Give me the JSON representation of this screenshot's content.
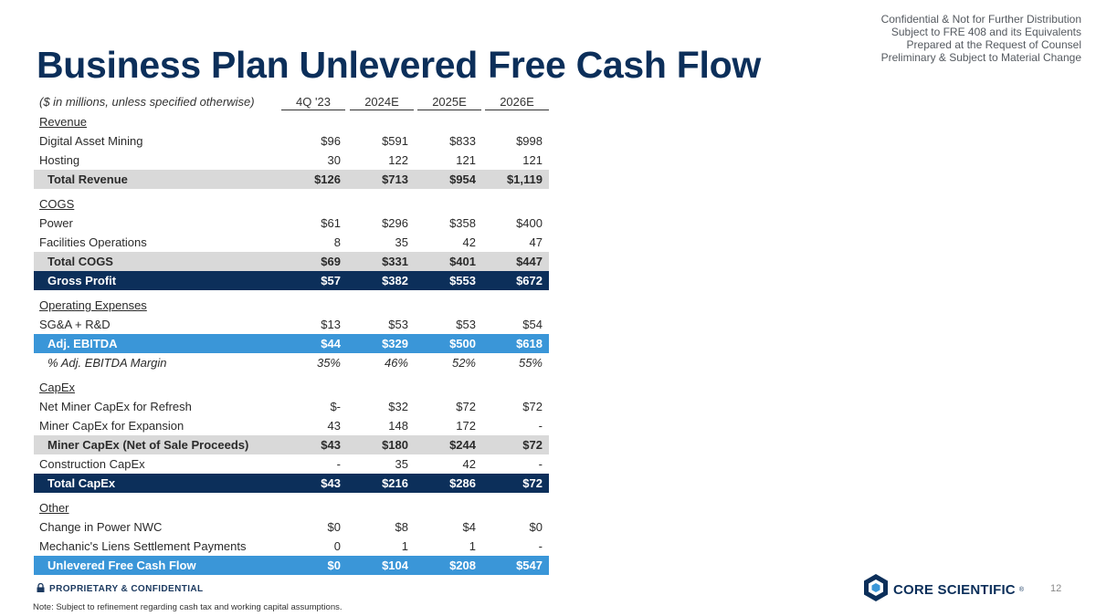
{
  "confidential_lines": [
    "Confidential & Not for Further Distribution",
    "Subject to FRE 408 and its Equivalents",
    "Prepared at the Request of Counsel",
    "Preliminary & Subject to Material Change"
  ],
  "title": "Business Plan Unlevered Free Cash Flow",
  "units_note": "($ in millions, unless specified otherwise)",
  "columns": [
    "4Q '23",
    "2024E",
    "2025E",
    "2026E"
  ],
  "rows": [
    {
      "label": "Revenue",
      "style": "section",
      "values": [
        "",
        "",
        "",
        ""
      ]
    },
    {
      "label": "Digital Asset Mining",
      "style": "plain",
      "values": [
        "$96",
        "$591",
        "$833",
        "$998"
      ]
    },
    {
      "label": "Hosting",
      "style": "plain",
      "values": [
        "30",
        "122",
        "121",
        "121"
      ]
    },
    {
      "label": "Total Revenue",
      "style": "gray",
      "values": [
        "$126",
        "$713",
        "$954",
        "$1,119"
      ]
    },
    {
      "label": "COGS",
      "style": "section",
      "values": [
        "",
        "",
        "",
        ""
      ]
    },
    {
      "label": "Power",
      "style": "plain",
      "values": [
        "$61",
        "$296",
        "$358",
        "$400"
      ]
    },
    {
      "label": "Facilities Operations",
      "style": "plain",
      "values": [
        "8",
        "35",
        "42",
        "47"
      ]
    },
    {
      "label": "Total COGS",
      "style": "gray",
      "values": [
        "$69",
        "$331",
        "$401",
        "$447"
      ]
    },
    {
      "label": "Gross Profit",
      "style": "navy",
      "values": [
        "$57",
        "$382",
        "$553",
        "$672"
      ]
    },
    {
      "label": "Operating Expenses",
      "style": "section",
      "values": [
        "",
        "",
        "",
        ""
      ]
    },
    {
      "label": "SG&A + R&D",
      "style": "plain",
      "values": [
        "$13",
        "$53",
        "$53",
        "$54"
      ]
    },
    {
      "label": "Adj. EBITDA",
      "style": "blue",
      "values": [
        "$44",
        "$329",
        "$500",
        "$618"
      ]
    },
    {
      "label": "% Adj. EBITDA Margin",
      "style": "italic",
      "values": [
        "35%",
        "46%",
        "52%",
        "55%"
      ]
    },
    {
      "label": "CapEx",
      "style": "section",
      "values": [
        "",
        "",
        "",
        ""
      ]
    },
    {
      "label": "Net Miner CapEx for Refresh",
      "style": "plain",
      "values": [
        "$-",
        "$32",
        "$72",
        "$72"
      ]
    },
    {
      "label": "Miner CapEx for Expansion",
      "style": "plain",
      "values": [
        "43",
        "148",
        "172",
        "-"
      ]
    },
    {
      "label": "Miner CapEx (Net of Sale Proceeds)",
      "style": "gray",
      "values": [
        "$43",
        "$180",
        "$244",
        "$72"
      ]
    },
    {
      "label": "Construction CapEx",
      "style": "plain",
      "values": [
        "-",
        "35",
        "42",
        "-"
      ]
    },
    {
      "label": "Total CapEx",
      "style": "navy",
      "values": [
        "$43",
        "$216",
        "$286",
        "$72"
      ]
    },
    {
      "label": "Other",
      "style": "section",
      "values": [
        "",
        "",
        "",
        ""
      ]
    },
    {
      "label": "Change in Power NWC",
      "style": "plain",
      "values": [
        "$0",
        "$8",
        "$4",
        "$0"
      ]
    },
    {
      "label": "Mechanic's Liens Settlement Payments",
      "style": "plain",
      "values": [
        "0",
        "1",
        "1",
        "-"
      ]
    },
    {
      "label": "Unlevered Free Cash Flow",
      "style": "blue",
      "values": [
        "$0",
        "$104",
        "$208",
        "$547"
      ]
    }
  ],
  "footer": {
    "proprietary": "PROPRIETARY & CONFIDENTIAL",
    "note": "Note: Subject to refinement regarding cash tax and working capital assumptions.",
    "logo_text": "CORE SCIENTIFIC",
    "logo_reg": "®",
    "page_number": "12"
  },
  "colors": {
    "navy": "#0c2f5a",
    "blue": "#3a96d8",
    "gray": "#d9d9d9"
  }
}
